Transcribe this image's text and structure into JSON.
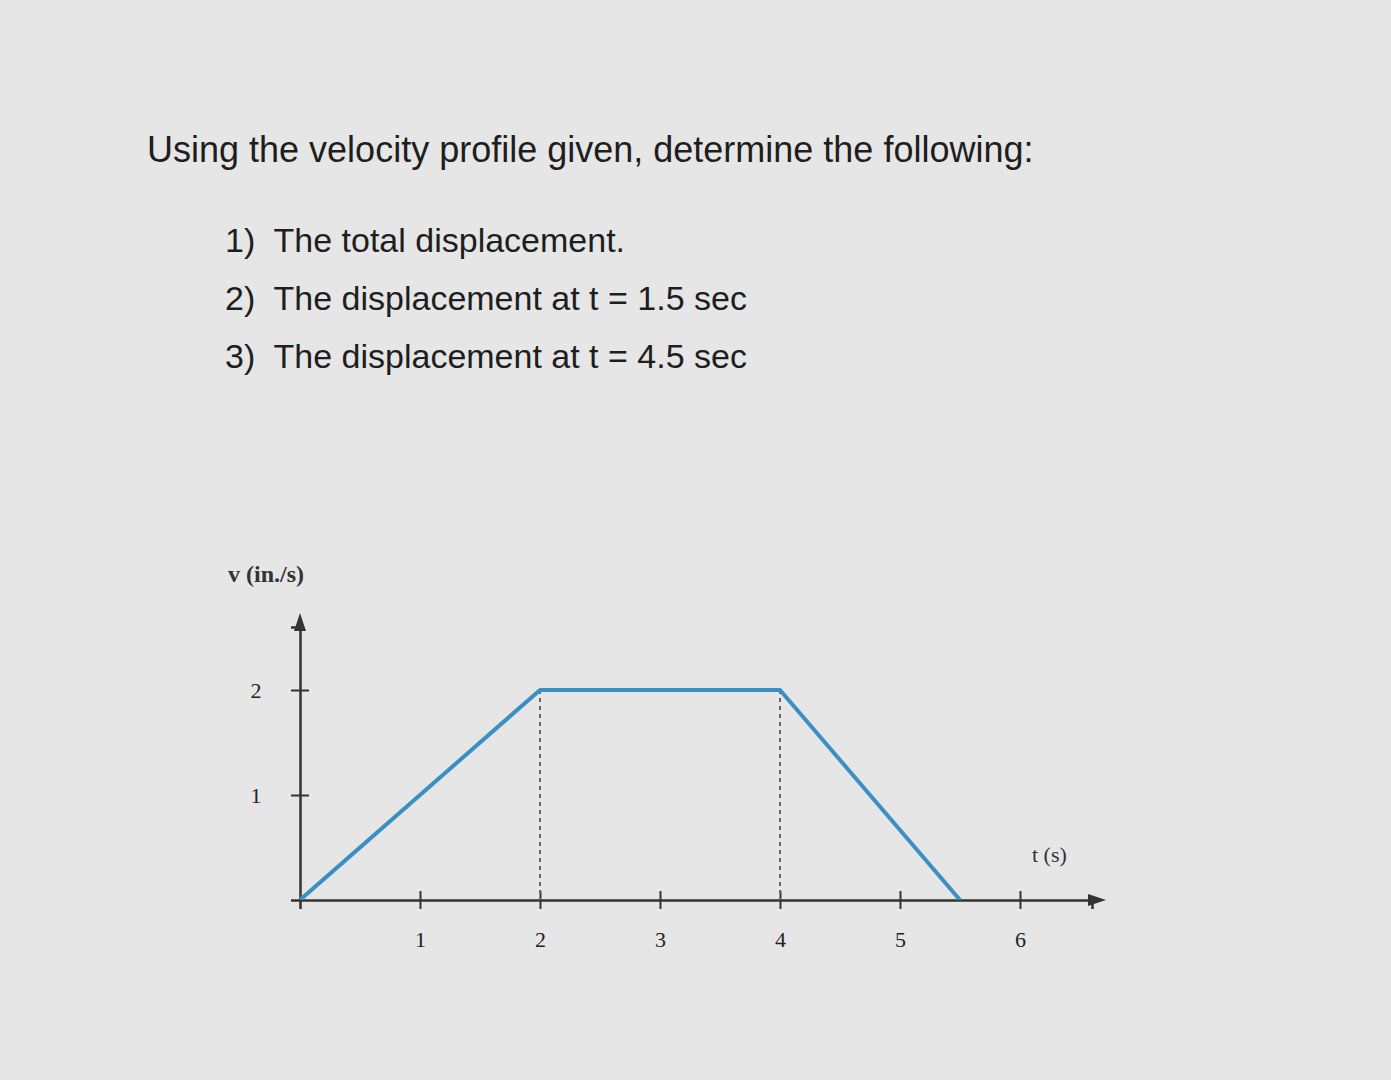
{
  "chart_data": {
    "type": "line",
    "title": "Using the velocity profile given, determine the following:",
    "annotations": [
      "1)  The total displacement.",
      "2)  The displacement at t = 1.5 sec",
      "3)  The displacement at t = 4.5 sec"
    ],
    "xlabel": "t (s)",
    "ylabel": "v (in./s)",
    "x": [
      0,
      2,
      4,
      5.5
    ],
    "values": [
      0,
      2,
      2,
      0
    ],
    "color": "#3b8fc2",
    "xlim": [
      0,
      6.6
    ],
    "ylim": [
      0,
      2.6
    ],
    "xticks": [
      1,
      2,
      3,
      4,
      5,
      6
    ],
    "yticks": [
      1,
      2
    ]
  }
}
